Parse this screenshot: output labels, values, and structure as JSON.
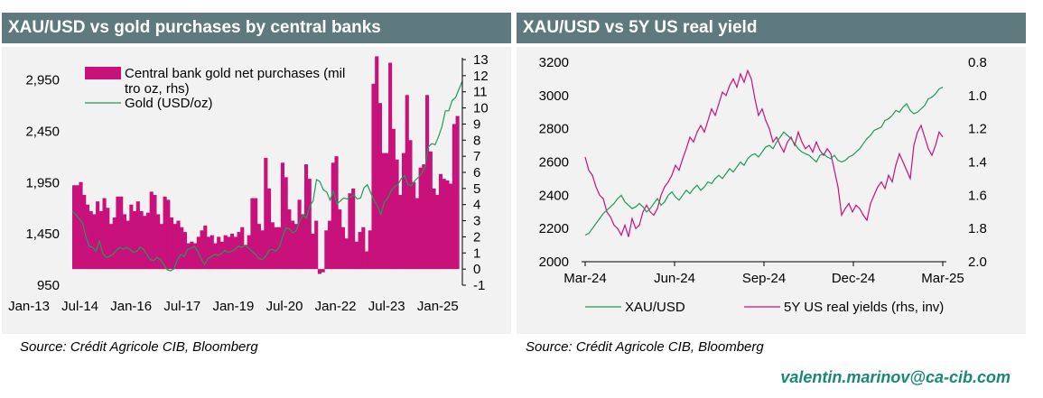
{
  "footer": {
    "email": "valentin.marinov@ca-cib.com"
  },
  "charts": [
    {
      "title": "XAU/USD vs gold purchases by central banks",
      "source": "Source: Crédit Agricole CIB, Bloomberg"
    },
    {
      "title": "XAU/USD vs 5Y US real yield",
      "source": "Source: Crédit Agricole CIB, Bloomberg"
    }
  ],
  "colors": {
    "header_bg": "#5f7a7e",
    "plot_bg": "#f2f2f2",
    "bars": "#c8117a",
    "gold_line": "#1f9a5a",
    "yield_line": "#c8117a",
    "email": "#19877a"
  },
  "chart_data": [
    {
      "type": "bar",
      "title": "XAU/USD vs gold purchases by central banks",
      "x_tick_labels": [
        "Jan-13",
        "Jul-14",
        "Jan-16",
        "Jul-17",
        "Jan-19",
        "Jul-20",
        "Jan-22",
        "Jul-23",
        "Jan-25"
      ],
      "y_left": {
        "ticks": [
          950,
          1450,
          1950,
          2450,
          2950
        ],
        "tick_labels": [
          "950",
          "1,450",
          "1,950",
          "2,450",
          "2,950"
        ],
        "range": [
          950,
          3150
        ]
      },
      "y_right": {
        "ticks": [
          -1,
          0,
          1,
          2,
          3,
          4,
          5,
          6,
          7,
          8,
          9,
          10,
          11,
          12,
          13
        ],
        "range": [
          -1,
          13
        ]
      },
      "legend": {
        "position": "top-left",
        "entries": [
          "Central bank gold net purchases (mil tro oz, rhs)",
          "Gold (USD/oz)"
        ]
      },
      "series": [
        {
          "name": "Central bank gold net purchases (mil tro oz, rhs)",
          "axis": "right",
          "kind": "bar",
          "values": [
            5.2,
            5.2,
            5.4,
            4.6,
            4.0,
            3.6,
            3.4,
            4.2,
            3.6,
            4.4,
            3.8,
            2.8,
            3.2,
            4.5,
            4.5,
            3.4,
            3.0,
            4.0,
            3.6,
            4.2,
            3.6,
            3.3,
            3.5,
            4.8,
            4.6,
            3.4,
            2.8,
            4.5,
            4.3,
            3.2,
            2.8,
            3.0,
            2.6,
            2.3,
            1.6,
            1.7,
            1.6,
            2.0,
            2.4,
            2.7,
            2.0,
            2.1,
            1.6,
            2.0,
            1.7,
            2.1,
            2.0,
            2.2,
            2.0,
            2.3,
            2.6,
            1.5,
            2.1,
            4.4,
            4.4,
            2.8,
            2.4,
            6.9,
            5.0,
            2.9,
            2.6,
            2.6,
            6.6,
            5.7,
            3.7,
            3.0,
            2.8,
            4.3,
            3.4,
            6.5,
            5.6,
            2.2,
            3.0,
            -0.3,
            -0.2,
            2.4,
            3.0,
            6.6,
            7.0,
            3.7,
            2.6,
            1.9,
            4.7,
            5.0,
            1.7,
            2.3,
            2.6,
            1.1,
            2.4,
            11.5,
            13.2,
            10.3,
            7.2,
            7.2,
            12.8,
            8.7,
            6.8,
            4.6,
            7.2,
            10.8,
            8.0,
            5.4,
            4.4,
            6.3,
            6.5,
            10.8,
            7.3,
            5.0,
            4.6,
            5.9,
            5.6,
            5.5,
            5.3,
            9.0,
            9.5,
            0.0
          ],
          "x_start": "Jan-13",
          "x_end": "Jan-25"
        },
        {
          "name": "Gold (USD/oz)",
          "axis": "left",
          "kind": "line",
          "values": [
            1670,
            1640,
            1600,
            1560,
            1430,
            1330,
            1320,
            1280,
            1380,
            1260,
            1220,
            1230,
            1250,
            1290,
            1320,
            1300,
            1320,
            1300,
            1270,
            1280,
            1320,
            1300,
            1250,
            1200,
            1190,
            1220,
            1200,
            1150,
            1100,
            1090,
            1110,
            1200,
            1250,
            1230,
            1300,
            1310,
            1330,
            1280,
            1210,
            1150,
            1210,
            1230,
            1250,
            1240,
            1260,
            1290,
            1270,
            1280,
            1300,
            1330,
            1320,
            1340,
            1310,
            1280,
            1250,
            1210,
            1200,
            1230,
            1290,
            1300,
            1280,
            1320,
            1420,
            1510,
            1500,
            1460,
            1480,
            1570,
            1640,
            1600,
            1720,
            1770,
            1980,
            1960,
            1880,
            1860,
            1780,
            1870,
            1740,
            1770,
            1800,
            1790,
            1810,
            1830,
            1790,
            1800,
            1900,
            1930,
            1850,
            1780,
            1720,
            1640,
            1760,
            1800,
            1870,
            1910,
            1930,
            1990,
            2020,
            1930,
            1920,
            1970,
            2000,
            2040,
            2100,
            2300,
            2330,
            2320,
            2400,
            2500,
            2650,
            2650,
            2750,
            2780,
            2860,
            2940
          ]
        }
      ]
    },
    {
      "type": "line",
      "title": "XAU/USD vs 5Y US real yield",
      "x_tick_labels": [
        "Mar-24",
        "Jun-24",
        "Sep-24",
        "Dec-24",
        "Mar-25"
      ],
      "y_left": {
        "ticks": [
          2000,
          2200,
          2400,
          2600,
          2800,
          3000,
          3200
        ],
        "range": [
          2000,
          3200
        ]
      },
      "y_right": {
        "ticks": [
          0.8,
          1.0,
          1.2,
          1.4,
          1.6,
          1.8,
          2.0
        ],
        "tick_labels": [
          "0.8",
          "1.0",
          "1.2",
          "1.4",
          "1.6",
          "1.8",
          "2.0"
        ],
        "range": [
          2.0,
          0.8
        ],
        "inverted": true
      },
      "legend": {
        "position": "bottom",
        "entries": [
          "XAU/USD",
          "5Y US real yields (rhs, inv)"
        ]
      },
      "series": [
        {
          "name": "XAU/USD",
          "axis": "left",
          "values": [
            2160,
            2170,
            2200,
            2230,
            2260,
            2290,
            2310,
            2330,
            2350,
            2380,
            2400,
            2360,
            2340,
            2320,
            2330,
            2350,
            2330,
            2300,
            2320,
            2350,
            2380,
            2340,
            2360,
            2400,
            2420,
            2390,
            2370,
            2400,
            2430,
            2410,
            2440,
            2460,
            2430,
            2450,
            2480,
            2470,
            2500,
            2520,
            2500,
            2530,
            2560,
            2540,
            2570,
            2600,
            2580,
            2620,
            2640,
            2650,
            2630,
            2660,
            2690,
            2700,
            2680,
            2720,
            2750,
            2780,
            2760,
            2740,
            2710,
            2680,
            2660,
            2650,
            2640,
            2620,
            2600,
            2640,
            2650,
            2630,
            2620,
            2640,
            2610,
            2600,
            2610,
            2630,
            2640,
            2660,
            2680,
            2710,
            2740,
            2760,
            2790,
            2800,
            2810,
            2850,
            2860,
            2880,
            2910,
            2900,
            2930,
            2950,
            2910,
            2890,
            2900,
            2920,
            2940,
            2980,
            2990,
            3010,
            3040,
            3050
          ]
        },
        {
          "name": "5Y US real yields (rhs, inv)",
          "axis": "right",
          "values": [
            1.37,
            1.45,
            1.48,
            1.55,
            1.6,
            1.62,
            1.7,
            1.73,
            1.78,
            1.8,
            1.84,
            1.78,
            1.85,
            1.74,
            1.8,
            1.78,
            1.7,
            1.66,
            1.7,
            1.72,
            1.68,
            1.6,
            1.55,
            1.52,
            1.48,
            1.42,
            1.45,
            1.38,
            1.32,
            1.25,
            1.28,
            1.22,
            1.18,
            1.22,
            1.15,
            1.08,
            1.12,
            1.05,
            0.98,
            1.0,
            0.94,
            0.9,
            0.95,
            0.87,
            0.92,
            0.85,
            0.9,
            1.02,
            1.12,
            1.08,
            1.15,
            1.2,
            1.28,
            1.25,
            1.3,
            1.34,
            1.28,
            1.25,
            1.3,
            1.22,
            1.28,
            1.32,
            1.3,
            1.34,
            1.28,
            1.33,
            1.36,
            1.32,
            1.35,
            1.45,
            1.55,
            1.72,
            1.68,
            1.65,
            1.7,
            1.66,
            1.68,
            1.72,
            1.75,
            1.65,
            1.6,
            1.55,
            1.52,
            1.56,
            1.48,
            1.52,
            1.42,
            1.35,
            1.4,
            1.45,
            1.5,
            1.3,
            1.22,
            1.18,
            1.25,
            1.32,
            1.36,
            1.3,
            1.22,
            1.25
          ]
        }
      ]
    }
  ]
}
